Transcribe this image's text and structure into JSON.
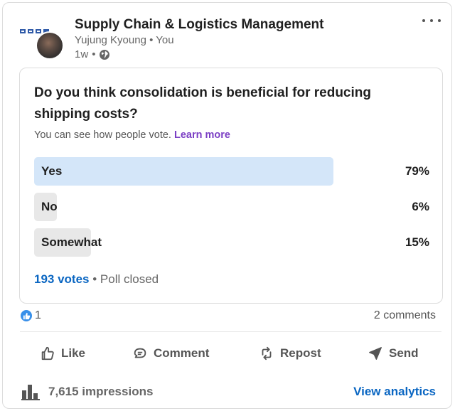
{
  "post": {
    "group_name": "Supply Chain & Logistics Management",
    "author": "Yujung Kyoung",
    "author_suffix": "You",
    "time": "1w",
    "avatar_icon": "profile-photo",
    "visibility_icon": "globe-icon"
  },
  "poll": {
    "question": "Do you think consolidation is beneficial for reducing shipping costs?",
    "visibility_note": "You can see how people vote.",
    "learn_more": "Learn more",
    "options": [
      {
        "label": "Yes",
        "percent": "79%",
        "fraction": 0.79,
        "color": "#d4e6f9"
      },
      {
        "label": "No",
        "percent": "6%",
        "fraction": 0.06,
        "color": "#e8e8e8"
      },
      {
        "label": "Somewhat",
        "percent": "15%",
        "fraction": 0.15,
        "color": "#e8e8e8"
      }
    ],
    "votes": "193 votes",
    "status": "Poll closed"
  },
  "social": {
    "reaction_count": "1",
    "comments": "2 comments"
  },
  "actions": {
    "like": "Like",
    "comment": "Comment",
    "repost": "Repost",
    "send": "Send"
  },
  "footer": {
    "impressions": "7,615 impressions",
    "view_analytics": "View analytics"
  },
  "colors": {
    "link_blue": "#0a66c2",
    "learn_more_purple": "#7b3fc4",
    "winning_bar": "#d4e6f9",
    "other_bar": "#e8e8e8"
  }
}
